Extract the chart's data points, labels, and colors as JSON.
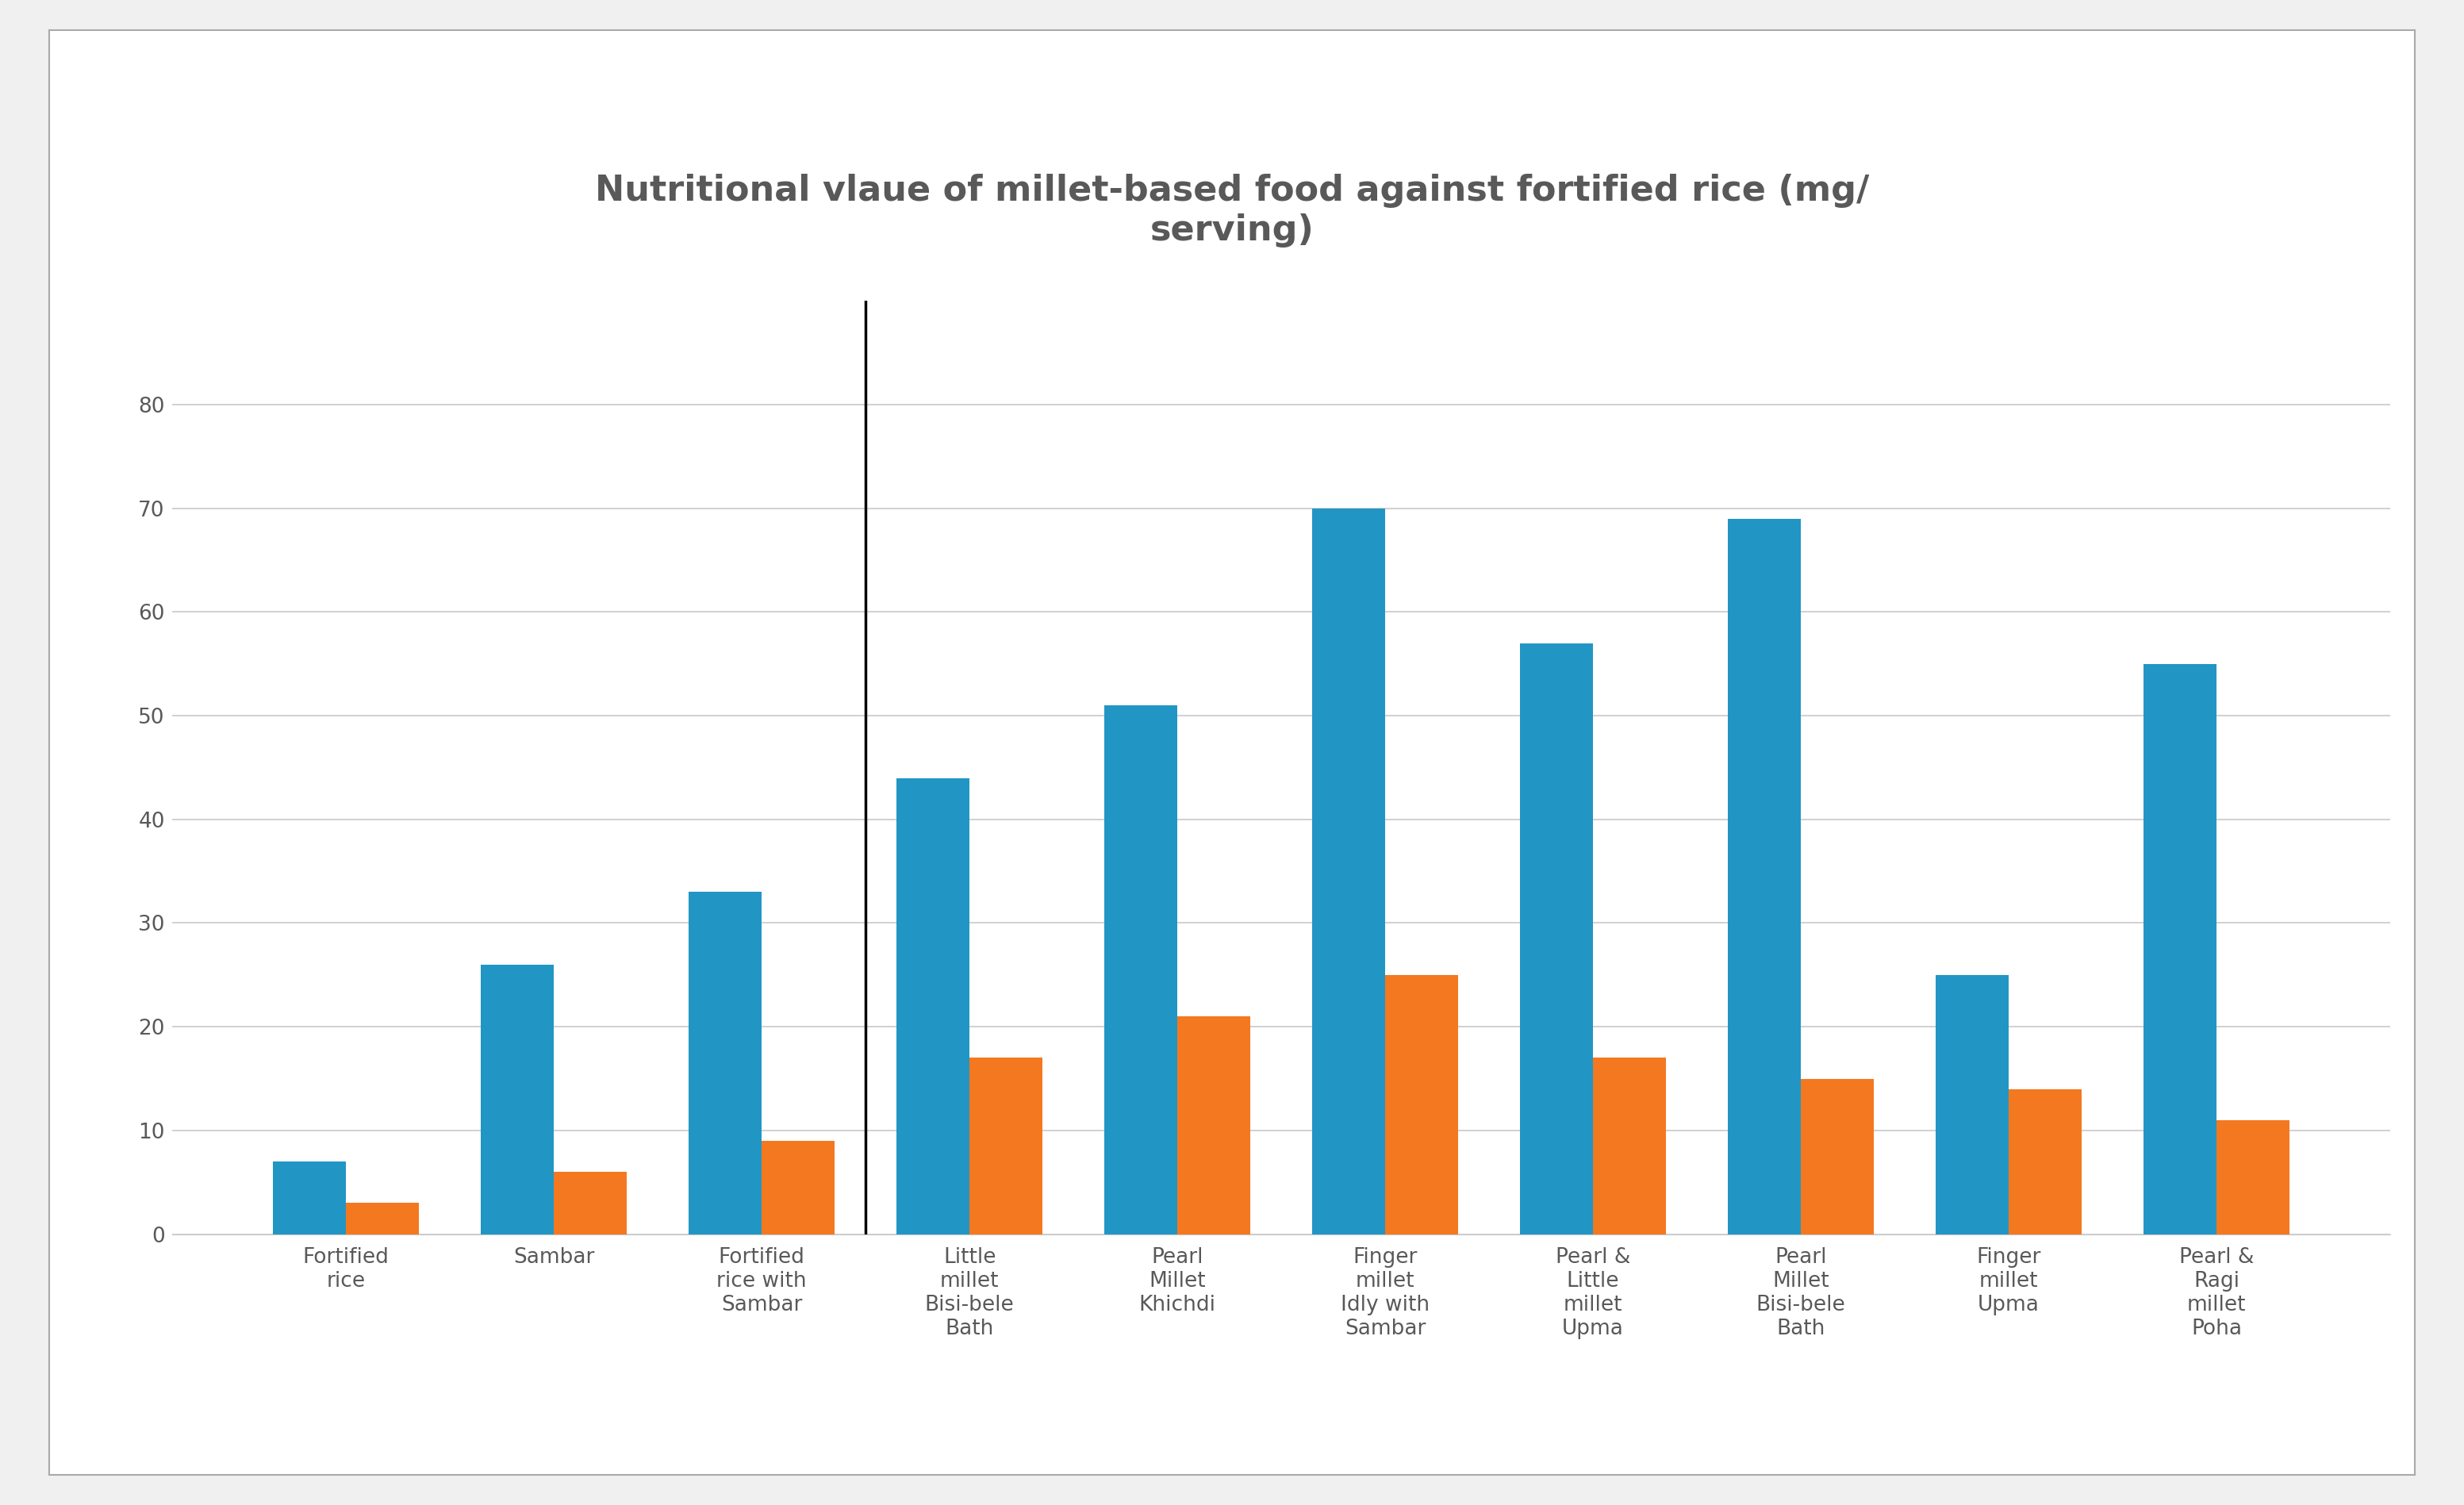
{
  "title": "Nutritional vlaue of millet-based food against fortified rice (mg/\nserving)",
  "categories": [
    "Fortified\nrice",
    "Sambar",
    "Fortified\nrice with\nSambar",
    "Little\nmillet\nBisi-bele\nBath",
    "Pearl\nMillet\nKhichdi",
    "Finger\nmillet\nIdly with\nSambar",
    "Pearl &\nLittle\nmillet\nUpma",
    "Pearl\nMillet\nBisi-bele\nBath",
    "Finger\nmillet\nUpma",
    "Pearl &\nRagi\nmillet\nPoha"
  ],
  "iron_values": [
    7,
    26,
    33,
    44,
    51,
    70,
    57,
    69,
    25,
    55
  ],
  "zinc_values": [
    3,
    6,
    9,
    17,
    21,
    25,
    17,
    15,
    14,
    11
  ],
  "iron_color": "#2196C4",
  "zinc_color": "#F47820",
  "background_color": "#FFFFFF",
  "outer_background": "#F0F0F0",
  "grid_color": "#C8C8C8",
  "ylim": [
    0,
    90
  ],
  "yticks": [
    0,
    10,
    20,
    30,
    40,
    50,
    60,
    70,
    80
  ],
  "bar_width": 0.35,
  "vertical_line_x": 2.5,
  "title_fontsize": 32,
  "tick_fontsize": 19,
  "legend_fontsize": 22,
  "text_color": "#595959"
}
